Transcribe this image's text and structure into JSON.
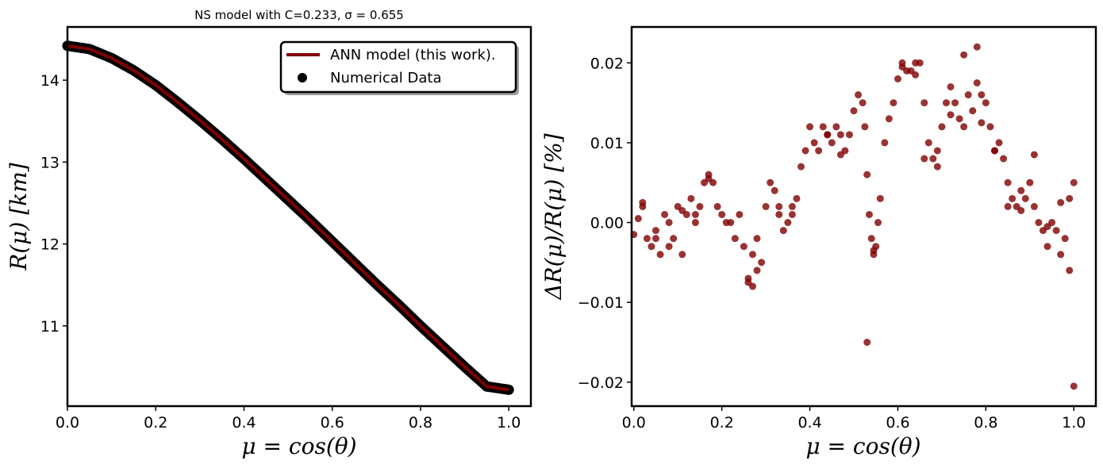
{
  "chart_data": [
    {
      "type": "line",
      "title": "NS model with C=0.233, σ = 0.655",
      "xlabel": "μ = cos(θ)",
      "ylabel": "R(μ) [km]",
      "xlim": [
        0.0,
        1.05
      ],
      "ylim": [
        10.02,
        14.65
      ],
      "xticks": [
        "0.0",
        "0.2",
        "0.4",
        "0.6",
        "0.8",
        "1.0"
      ],
      "yticks": [
        "11",
        "12",
        "13",
        "14"
      ],
      "legend_position": "top-right",
      "grid": false,
      "series": [
        {
          "name": "ANN model (this work).",
          "kind": "line",
          "color": "#800000",
          "x": [
            0.0,
            0.05,
            0.1,
            0.15,
            0.2,
            0.25,
            0.3,
            0.35,
            0.4,
            0.45,
            0.5,
            0.55,
            0.6,
            0.65,
            0.7,
            0.75,
            0.8,
            0.85,
            0.9,
            0.95,
            1.0
          ],
          "y": [
            14.42,
            14.38,
            14.27,
            14.12,
            13.94,
            13.73,
            13.51,
            13.28,
            13.04,
            12.79,
            12.54,
            12.29,
            12.03,
            11.77,
            11.51,
            11.26,
            11.0,
            10.75,
            10.5,
            10.26,
            10.22
          ]
        },
        {
          "name": "Numerical Data",
          "kind": "scatter",
          "color": "#000000",
          "x": [
            0.0,
            0.05,
            0.1,
            0.15,
            0.2,
            0.25,
            0.3,
            0.35,
            0.4,
            0.45,
            0.5,
            0.55,
            0.6,
            0.65,
            0.7,
            0.75,
            0.8,
            0.85,
            0.9,
            0.95,
            1.0
          ],
          "y": [
            14.42,
            14.38,
            14.27,
            14.12,
            13.94,
            13.73,
            13.51,
            13.28,
            13.04,
            12.79,
            12.54,
            12.29,
            12.03,
            11.77,
            11.51,
            11.26,
            11.0,
            10.75,
            10.5,
            10.26,
            10.22
          ]
        }
      ]
    },
    {
      "type": "scatter",
      "title": "",
      "xlabel": "μ = cos(θ)",
      "ylabel": "ΔR(μ)/R(μ) [%]",
      "xlim": [
        -0.005,
        1.05
      ],
      "ylim": [
        -0.023,
        0.0245
      ],
      "xticks": [
        "0.0",
        "0.2",
        "0.4",
        "0.6",
        "0.8",
        "1.0"
      ],
      "yticks": [
        "−0.02",
        "−0.01",
        "0.00",
        "0.01",
        "0.02"
      ],
      "grid": false,
      "color": "#800000",
      "x": [
        0.0,
        0.01,
        0.02,
        0.03,
        0.04,
        0.05,
        0.06,
        0.07,
        0.08,
        0.09,
        0.1,
        0.11,
        0.12,
        0.13,
        0.14,
        0.15,
        0.16,
        0.17,
        0.18,
        0.19,
        0.2,
        0.21,
        0.22,
        0.23,
        0.24,
        0.25,
        0.26,
        0.27,
        0.28,
        0.29,
        0.3,
        0.31,
        0.32,
        0.33,
        0.34,
        0.35,
        0.36,
        0.37,
        0.38,
        0.39,
        0.4,
        0.41,
        0.42,
        0.43,
        0.44,
        0.45,
        0.46,
        0.47,
        0.48,
        0.49,
        0.5,
        0.51,
        0.52,
        0.525,
        0.53,
        0.535,
        0.54,
        0.545,
        0.55,
        0.555,
        0.56,
        0.57,
        0.58,
        0.59,
        0.6,
        0.61,
        0.62,
        0.63,
        0.64,
        0.65,
        0.66,
        0.67,
        0.68,
        0.69,
        0.7,
        0.71,
        0.72,
        0.73,
        0.74,
        0.75,
        0.76,
        0.77,
        0.78,
        0.79,
        0.8,
        0.81,
        0.82,
        0.83,
        0.84,
        0.85,
        0.86,
        0.87,
        0.88,
        0.89,
        0.9,
        0.91,
        0.92,
        0.93,
        0.94,
        0.95,
        0.96,
        0.97,
        0.98,
        0.99,
        1.0,
        0.02,
        0.05,
        0.08,
        0.11,
        0.14,
        0.17,
        0.26,
        0.27,
        0.28,
        0.33,
        0.36,
        0.44,
        0.47,
        0.53,
        0.545,
        0.61,
        0.64,
        0.66,
        0.69,
        0.72,
        0.75,
        0.78,
        0.79,
        0.82,
        0.85,
        0.88,
        0.91,
        0.94,
        0.97,
        0.99,
        1.0
      ],
      "y": [
        -0.0015,
        0.0005,
        0.002,
        -0.002,
        -0.003,
        -0.001,
        -0.004,
        0.001,
        0.0,
        -0.002,
        0.002,
        -0.004,
        0.001,
        0.003,
        0.0,
        0.002,
        0.005,
        0.006,
        0.005,
        0.002,
        0.001,
        0.0,
        0.0,
        -0.002,
        0.001,
        -0.003,
        -0.007,
        -0.004,
        -0.002,
        -0.005,
        0.002,
        0.005,
        0.004,
        0.001,
        -0.001,
        0.0,
        0.002,
        0.003,
        0.007,
        0.009,
        0.012,
        0.01,
        0.009,
        0.012,
        0.011,
        0.01,
        0.012,
        0.011,
        0.009,
        0.011,
        0.014,
        0.016,
        0.015,
        0.012,
        0.006,
        0.001,
        -0.002,
        -0.004,
        -0.003,
        0.0,
        0.003,
        0.01,
        0.013,
        0.015,
        0.018,
        0.02,
        0.019,
        0.019,
        0.02,
        0.02,
        0.015,
        0.01,
        0.008,
        0.009,
        0.012,
        0.015,
        0.017,
        0.015,
        0.013,
        0.021,
        0.016,
        0.014,
        0.022,
        0.016,
        0.015,
        0.012,
        0.009,
        0.01,
        0.008,
        0.005,
        0.003,
        0.002,
        0.004,
        0.003,
        0.005,
        0.002,
        0.0,
        -0.001,
        -0.003,
        0.0,
        -0.001,
        -0.004,
        -0.002,
        0.003,
        0.005,
        0.0025,
        -0.002,
        -0.003,
        0.0015,
        0.001,
        0.0055,
        -0.0075,
        -0.008,
        -0.006,
        0.002,
        0.001,
        0.011,
        0.0085,
        -0.015,
        -0.0035,
        0.0195,
        0.0185,
        0.008,
        0.007,
        0.0135,
        0.012,
        0.0175,
        0.0125,
        0.009,
        0.002,
        0.0015,
        0.0085,
        -0.0005,
        0.0025,
        -0.006,
        -0.0205
      ]
    }
  ]
}
